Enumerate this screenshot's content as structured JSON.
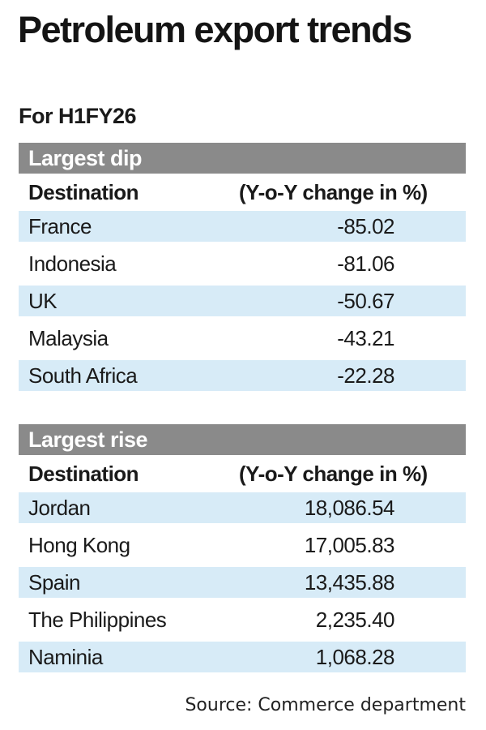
{
  "title": "Petroleum export trends",
  "subtitle": "For H1FY26",
  "chart_data": {
    "type": "table",
    "tables": [
      {
        "heading": "Largest dip",
        "columns": [
          "Destination",
          "(Y-o-Y change in %)"
        ],
        "rows": [
          {
            "destination": "France",
            "value": "-85.02"
          },
          {
            "destination": "Indonesia",
            "value": "-81.06"
          },
          {
            "destination": "UK",
            "value": "-50.67"
          },
          {
            "destination": "Malaysia",
            "value": "-43.21"
          },
          {
            "destination": "South Africa",
            "value": "-22.28"
          }
        ]
      },
      {
        "heading": "Largest rise",
        "columns": [
          "Destination",
          "(Y-o-Y change in %)"
        ],
        "rows": [
          {
            "destination": "Jordan",
            "value": "18,086.54"
          },
          {
            "destination": "Hong Kong",
            "value": "17,005.83"
          },
          {
            "destination": "Spain",
            "value": "13,435.88"
          },
          {
            "destination": "The Philippines",
            "value": "2,235.40"
          },
          {
            "destination": "Naminia",
            "value": "1,068.28"
          }
        ]
      }
    ]
  },
  "source": "Source: Commerce department",
  "colors": {
    "header_bg": "#8a8a8a",
    "row_shade": "#d7ebf7",
    "text": "#1a1a1a"
  }
}
